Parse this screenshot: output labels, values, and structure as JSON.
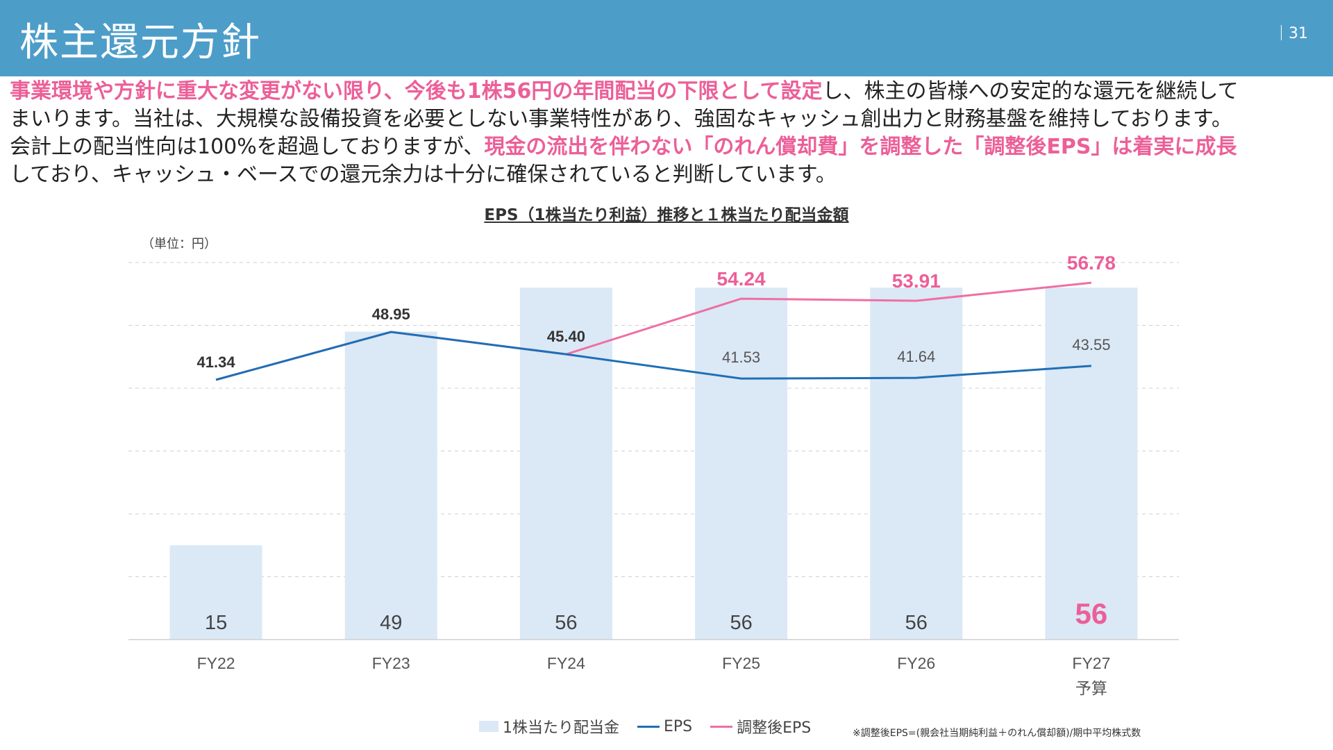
{
  "header": {
    "title": "株主還元方針",
    "page_number": "31"
  },
  "intro": {
    "line1_hl": "事業環境や方針に重大な変更がない限り、今後も1株56円の年間配当の下限として設定",
    "line1_rest": "し、株主の皆様への安定的な還元を継続して",
    "line2": "まいります。当社は、大規模な設備投資を必要としない事業特性があり、強固なキャッシュ創出力と財務基盤を維持しております。",
    "line3_pre": "会計上の配当性向は100%を超過しておりますが、",
    "line3_hl": "現金の流出を伴わない「のれん償却費」を調整した「調整後EPS」は着実に成長",
    "line4": "しており、キャッシュ・ベースでの還元余力は十分に確保されていると判断しています。"
  },
  "chart_title": "EPS（1株当たり利益）推移と１株当たり配当金額",
  "unit_label": "（単位：円）",
  "footnote": "※調整後EPS=(親会社当期純利益＋のれん償却額)/期中平均株式数",
  "colors": {
    "header": "#4d9dc9",
    "bar": "#dbe8f6",
    "eps": "#1f6fb5",
    "adj_eps": "#ef6fa3",
    "highlight": "#ec5f98"
  },
  "chart_data": {
    "type": "bar",
    "categories": [
      "FY22",
      "FY23",
      "FY24",
      "FY25",
      "FY26",
      "FY27"
    ],
    "category_sublabels": [
      "",
      "",
      "",
      "",
      "",
      "予算"
    ],
    "ylim": [
      0,
      60
    ],
    "grid": true,
    "legend_position": "bottom",
    "series": [
      {
        "name": "1株当たり配当金",
        "type": "bar",
        "values": [
          15,
          49,
          56,
          56,
          56,
          56
        ],
        "labels": [
          "15",
          "49",
          "56",
          "56",
          "56",
          "56"
        ]
      },
      {
        "name": "EPS",
        "type": "line",
        "values": [
          41.34,
          48.95,
          45.4,
          41.53,
          41.64,
          43.55
        ],
        "labels": [
          "41.34",
          "48.95",
          "45.40",
          "41.53",
          "41.64",
          "43.55"
        ]
      },
      {
        "name": "調整後EPS",
        "type": "line",
        "values": [
          41.34,
          48.95,
          45.4,
          54.24,
          53.91,
          56.78
        ],
        "labels": [
          "",
          "",
          "",
          "54.24",
          "53.91",
          "56.78"
        ]
      }
    ]
  }
}
